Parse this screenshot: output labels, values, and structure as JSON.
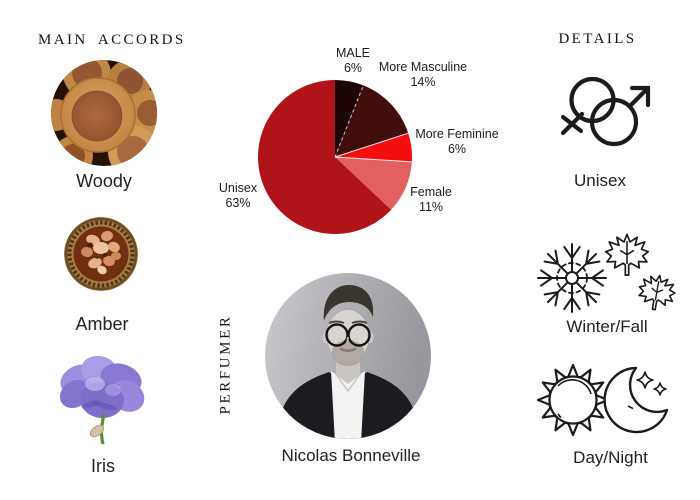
{
  "page": {
    "background": "#ffffff",
    "text_color": "#1f1f1f",
    "icon_ink": "#1b1b1b"
  },
  "main_accords": {
    "heading": "MAIN ACCORDS",
    "items": [
      {
        "name": "Woody",
        "icon": "wood-slices-photo"
      },
      {
        "name": "Amber",
        "icon": "amber-resin-bowl-photo"
      },
      {
        "name": "Iris",
        "icon": "iris-flower-photo"
      }
    ]
  },
  "chart_data": {
    "type": "pie",
    "title": "",
    "start_angle": "12-oclock",
    "direction": "clockwise",
    "labels_position": "outside",
    "legend": "none",
    "slices": [
      {
        "label": "MALE",
        "value": 6,
        "display": "6%",
        "color": "#1e0606"
      },
      {
        "label": "More Masculine",
        "value": 14,
        "display": "14%",
        "color": "#420d0d"
      },
      {
        "label": "More Feminine",
        "value": 6,
        "display": "6%",
        "color": "#f60d0d"
      },
      {
        "label": "Female",
        "value": 11,
        "display": "11%",
        "color": "#e2615e"
      },
      {
        "label": "Unisex",
        "value": 63,
        "display": "63%",
        "color": "#b01318"
      }
    ]
  },
  "perfumer": {
    "heading": "PERFUMER",
    "name": "Nicolas Bonneville",
    "photo": "perfumer-portrait-photo"
  },
  "details": {
    "heading": "DETAILS",
    "items": [
      {
        "label": "Unisex",
        "icon": "gender-unisex-icon"
      },
      {
        "label": "Winter/Fall",
        "icon": "snowflake-and-maple-leaves-icon"
      },
      {
        "label": "Day/Night",
        "icon": "sun-and-moon-icon"
      }
    ]
  }
}
